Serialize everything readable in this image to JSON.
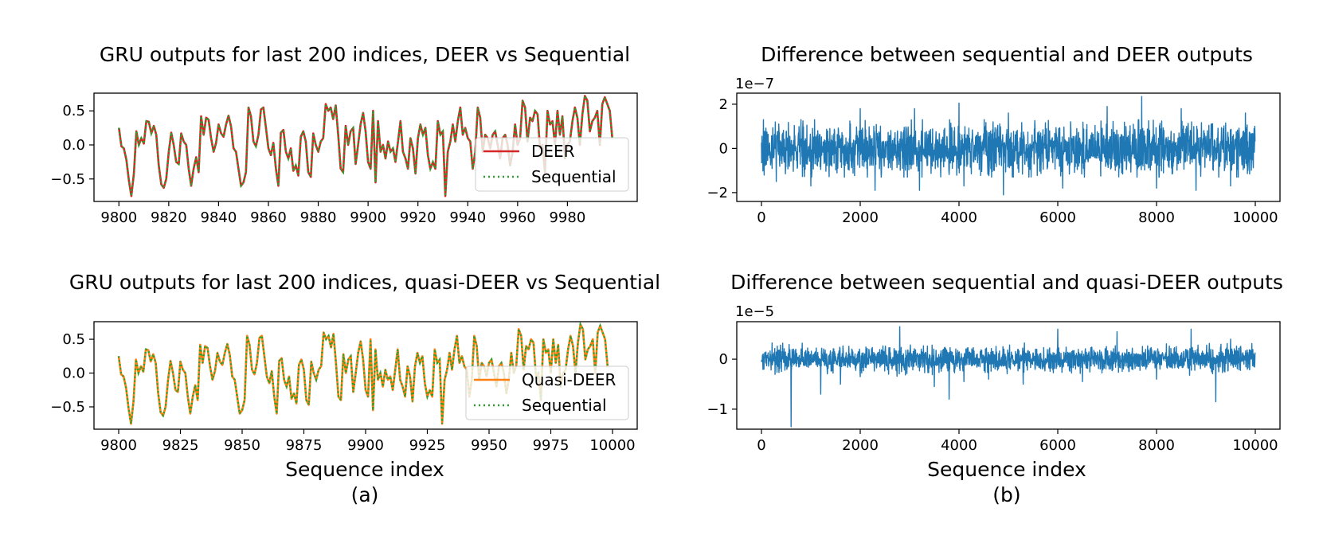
{
  "chart_data": [
    {
      "id": "gru-deer",
      "type": "line",
      "title": "GRU outputs for last 200 indices, DEER vs Sequential",
      "xlabel": "",
      "xlim": [
        9790,
        10008
      ],
      "ylim": [
        -0.83,
        0.76
      ],
      "xticks": [
        9800,
        9820,
        9840,
        9860,
        9880,
        9900,
        9920,
        9940,
        9960,
        9980
      ],
      "yticks": [
        0.5,
        0.0,
        -0.5
      ],
      "ytick_labels": [
        "0.5",
        "0.0",
        "−0.5"
      ],
      "legend_position": "center-right",
      "x_start": 9800,
      "values": [
        0.25,
        -0.02,
        -0.05,
        -0.22,
        -0.52,
        -0.75,
        -0.42,
        0.2,
        0.0,
        0.1,
        0.02,
        0.35,
        0.34,
        0.17,
        0.28,
        0.15,
        -0.3,
        -0.58,
        -0.63,
        -0.5,
        -0.1,
        0.18,
        0.0,
        -0.25,
        -0.28,
        0.17,
        0.05,
        0.0,
        -0.35,
        -0.6,
        -0.35,
        -0.18,
        -0.4,
        0.42,
        0.15,
        0.4,
        0.37,
        0.1,
        -0.1,
        0.03,
        0.3,
        0.17,
        0.12,
        0.3,
        0.43,
        0.27,
        -0.05,
        -0.1,
        -0.35,
        -0.6,
        -0.55,
        -0.4,
        0.55,
        0.42,
        0.05,
        -0.02,
        0.15,
        0.52,
        0.55,
        0.25,
        -0.05,
        -0.15,
        0.03,
        -0.35,
        -0.6,
        0.18,
        0.22,
        -0.1,
        -0.2,
        -0.05,
        -0.38,
        -0.3,
        -0.45,
        0.12,
        0.2,
        0.05,
        -0.4,
        -0.47,
        0.17,
        0.0,
        -0.1,
        0.05,
        0.1,
        0.6,
        0.5,
        0.55,
        0.38,
        0.58,
        0.15,
        -0.35,
        -0.4,
        0.28,
        0.0,
        0.2,
        0.25,
        -0.28,
        0.0,
        0.3,
        0.47,
        0.2,
        -0.25,
        -0.35,
        0.5,
        -0.55,
        0.35,
        -0.1,
        0.0,
        -0.2,
        0.05,
        -0.1,
        -0.05,
        -0.25,
        0.05,
        0.35,
        -0.1,
        -0.2,
        -0.35,
        0.1,
        -0.05,
        -0.42,
        0.1,
        0.3,
        0.15,
        0.25,
        -0.15,
        -0.35,
        -0.25,
        -0.35,
        0.35,
        0.15,
        0.2,
        -0.75,
        -0.1,
        0.05,
        0.3,
        0.05,
        0.35,
        0.55,
        0.15,
        0.25,
        0.1,
        0.05,
        -0.35,
        -0.1,
        0.55,
        0.4,
        -0.1,
        0.15,
        0.1,
        -0.05,
        0.15,
        0.2,
        0.0,
        -0.2,
        0.1,
        0.15,
        0.0,
        -0.3,
        -0.1,
        0.3,
        0.0,
        0.1,
        0.65,
        0.55,
        0.05,
        0.4,
        0.35,
        0.5,
        0.45,
        -0.05,
        0.0,
        -0.4,
        0.5,
        0.3,
        0.35,
        0.0,
        0.5,
        0.15,
        0.42,
        -0.2,
        0.0,
        0.05,
        0.35,
        0.55,
        0.4,
        0.0,
        0.45,
        0.72,
        0.65,
        0.2,
        0.35,
        0.4,
        0.5,
        0.0,
        0.6,
        0.7,
        0.6,
        0.5,
        0.1
      ],
      "series": [
        {
          "name": "DEER",
          "color": "#d62728",
          "style": "solid"
        },
        {
          "name": "Sequential",
          "color": "#2ca02c",
          "style": "dotted"
        }
      ]
    },
    {
      "id": "diff-deer",
      "type": "line",
      "title": "Difference between sequential and DEER outputs",
      "xlabel": "",
      "xlim": [
        -500,
        10500
      ],
      "ylim": [
        -2.4,
        2.5
      ],
      "scale_label": "1e−7",
      "xticks": [
        0,
        2000,
        4000,
        6000,
        8000,
        10000
      ],
      "yticks": [
        2,
        0,
        -2
      ],
      "ytick_labels": [
        "2",
        "0",
        "−2"
      ],
      "color": "#1f77b4",
      "generator": {
        "n": 10000,
        "noise_amplitude": 0.55,
        "noise_clip": 1.3
      },
      "spikes": [
        [
          300,
          -1.5
        ],
        [
          1000,
          -1.7
        ],
        [
          2000,
          1.8
        ],
        [
          2300,
          -1.9
        ],
        [
          3100,
          1.8
        ],
        [
          3200,
          -1.9
        ],
        [
          4000,
          2.05
        ],
        [
          4100,
          -1.7
        ],
        [
          4900,
          -2.1
        ],
        [
          5000,
          1.6
        ],
        [
          6100,
          -1.8
        ],
        [
          7000,
          1.9
        ],
        [
          7700,
          2.35
        ],
        [
          8000,
          -1.8
        ],
        [
          8500,
          1.8
        ],
        [
          8800,
          -1.9
        ],
        [
          9500,
          -1.7
        ],
        [
          9800,
          1.6
        ]
      ]
    },
    {
      "id": "gru-quasi",
      "type": "line",
      "title": "GRU outputs for last 200 indices, quasi-DEER vs Sequential",
      "xlabel": "Sequence index",
      "panel_label": "(a)",
      "xlim": [
        9790,
        10010
      ],
      "ylim": [
        -0.83,
        0.76
      ],
      "xticks": [
        9800,
        9825,
        9850,
        9875,
        9900,
        9925,
        9950,
        9975,
        10000
      ],
      "yticks": [
        0.5,
        0.0,
        -0.5
      ],
      "ytick_labels": [
        "0.5",
        "0.0",
        "−0.5"
      ],
      "legend_position": "center-right",
      "x_start": 9800,
      "values_from": "gru-deer",
      "series": [
        {
          "name": "Quasi-DEER",
          "color": "#ff7f0e",
          "style": "solid"
        },
        {
          "name": "Sequential",
          "color": "#2ca02c",
          "style": "dotted"
        }
      ]
    },
    {
      "id": "diff-quasi",
      "type": "line",
      "title": "Difference between sequential and quasi-DEER outputs",
      "xlabel": "Sequence index",
      "panel_label": "(b)",
      "xlim": [
        -500,
        10500
      ],
      "ylim": [
        -1.4,
        0.75
      ],
      "scale_label": "1e−5",
      "xticks": [
        0,
        2000,
        4000,
        6000,
        8000,
        10000
      ],
      "yticks": [
        0,
        -1
      ],
      "ytick_labels": [
        "0",
        "−1"
      ],
      "color": "#1f77b4",
      "generator": {
        "n": 10000,
        "noise_amplitude": 0.12,
        "noise_clip": 0.35
      },
      "spikes": [
        [
          50,
          -0.2
        ],
        [
          600,
          -1.35
        ],
        [
          1200,
          -0.7
        ],
        [
          1600,
          -0.5
        ],
        [
          2000,
          -0.35
        ],
        [
          2800,
          0.65
        ],
        [
          3500,
          -0.55
        ],
        [
          3800,
          -0.8
        ],
        [
          4100,
          -0.45
        ],
        [
          4600,
          -0.4
        ],
        [
          5300,
          -0.5
        ],
        [
          6000,
          0.6
        ],
        [
          6500,
          -0.45
        ],
        [
          7200,
          0.55
        ],
        [
          8000,
          -0.4
        ],
        [
          8700,
          0.6
        ],
        [
          9200,
          -0.85
        ],
        [
          9500,
          0.4
        ]
      ]
    }
  ]
}
